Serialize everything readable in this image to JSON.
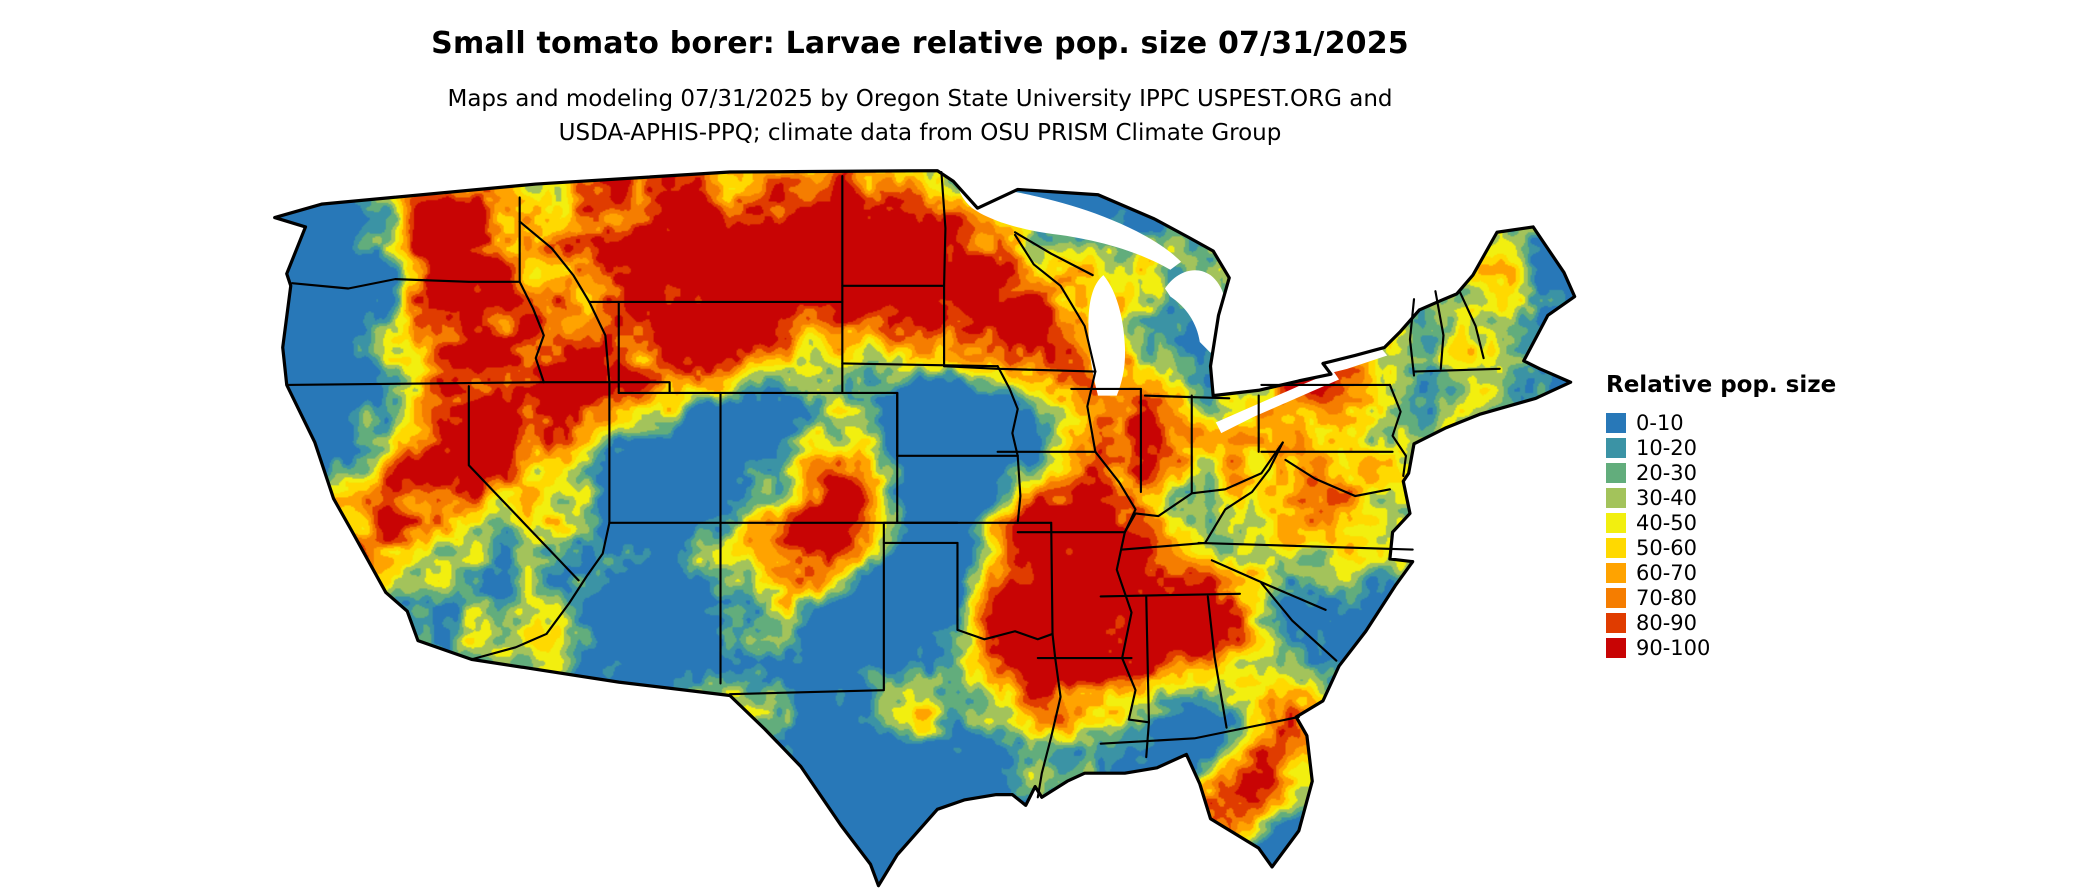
{
  "title": "Small tomato borer: Larvae relative pop. size 07/31/2025",
  "subtitle": {
    "line1": "Maps and modeling 07/31/2025 by Oregon State University IPPC USPEST.ORG and",
    "line2": "USDA-APHIS-PPQ; climate data from OSU PRISM Climate Group"
  },
  "legend": {
    "title": "Relative pop. size",
    "items": [
      {
        "label": "0-10",
        "color": "#2878b8"
      },
      {
        "label": "10-20",
        "color": "#3b93a5"
      },
      {
        "label": "20-30",
        "color": "#62ad7c"
      },
      {
        "label": "30-40",
        "color": "#a3c35b"
      },
      {
        "label": "40-50",
        "color": "#f2ef0f"
      },
      {
        "label": "50-60",
        "color": "#ffd900"
      },
      {
        "label": "60-70",
        "color": "#ffa300"
      },
      {
        "label": "70-80",
        "color": "#f57d00"
      },
      {
        "label": "80-90",
        "color": "#e03c00"
      },
      {
        "label": "90-100",
        "color": "#c80404"
      }
    ]
  },
  "map": {
    "region": "Continental United States",
    "water_color": "#ffffff",
    "border_color": "#000000"
  }
}
